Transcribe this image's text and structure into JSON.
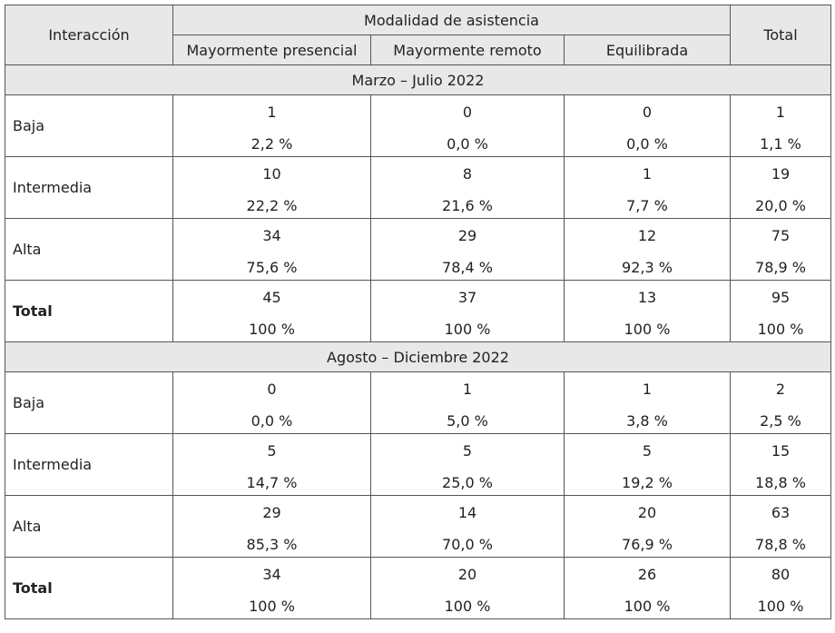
{
  "header": {
    "interaction": "Interacción",
    "modality": "Modalidad de asistencia",
    "total": "Total",
    "columns": [
      "Mayormente presencial",
      "Mayormente remoto",
      "Equilibrada"
    ]
  },
  "periods": [
    {
      "title": "Marzo – Julio 2022",
      "rows": [
        {
          "label": "Baja",
          "bold": false,
          "cells": [
            [
              "1",
              "2,2 %"
            ],
            [
              "0",
              "0,0 %"
            ],
            [
              "0",
              "0,0 %"
            ],
            [
              "1",
              "1,1 %"
            ]
          ]
        },
        {
          "label": "Intermedia",
          "bold": false,
          "cells": [
            [
              "10",
              "22,2 %"
            ],
            [
              "8",
              "21,6 %"
            ],
            [
              "1",
              "7,7 %"
            ],
            [
              "19",
              "20,0 %"
            ]
          ]
        },
        {
          "label": "Alta",
          "bold": false,
          "cells": [
            [
              "34",
              "75,6 %"
            ],
            [
              "29",
              "78,4 %"
            ],
            [
              "12",
              "92,3 %"
            ],
            [
              "75",
              "78,9 %"
            ]
          ]
        },
        {
          "label": "Total",
          "bold": true,
          "cells": [
            [
              "45",
              "100 %"
            ],
            [
              "37",
              "100 %"
            ],
            [
              "13",
              "100 %"
            ],
            [
              "95",
              "100 %"
            ]
          ]
        }
      ]
    },
    {
      "title": "Agosto – Diciembre 2022",
      "rows": [
        {
          "label": "Baja",
          "bold": false,
          "cells": [
            [
              "0",
              "0,0 %"
            ],
            [
              "1",
              "5,0 %"
            ],
            [
              "1",
              "3,8 %"
            ],
            [
              "2",
              "2,5 %"
            ]
          ]
        },
        {
          "label": "Intermedia",
          "bold": false,
          "cells": [
            [
              "5",
              "14,7 %"
            ],
            [
              "5",
              "25,0 %"
            ],
            [
              "5",
              "19,2 %"
            ],
            [
              "15",
              "18,8 %"
            ]
          ]
        },
        {
          "label": "Alta",
          "bold": false,
          "cells": [
            [
              "29",
              "85,3 %"
            ],
            [
              "14",
              "70,0 %"
            ],
            [
              "20",
              "76,9 %"
            ],
            [
              "63",
              "78,8 %"
            ]
          ]
        },
        {
          "label": "Total",
          "bold": true,
          "cells": [
            [
              "34",
              "100 %"
            ],
            [
              "20",
              "100 %"
            ],
            [
              "26",
              "100 %"
            ],
            [
              "80",
              "100 %"
            ]
          ]
        }
      ]
    }
  ]
}
